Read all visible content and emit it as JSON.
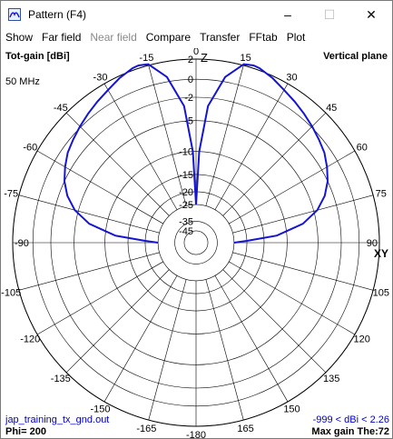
{
  "window": {
    "title": "Pattern   (F4)",
    "minimize_glyph": "–",
    "maximize_glyph": "☐",
    "close_glyph": "✕"
  },
  "menu": [
    {
      "label": "Show",
      "enabled": true
    },
    {
      "label": "Far field",
      "enabled": true
    },
    {
      "label": "Near field",
      "enabled": false
    },
    {
      "label": "Compare",
      "enabled": true
    },
    {
      "label": "Transfer",
      "enabled": true
    },
    {
      "label": "FFtab",
      "enabled": true
    },
    {
      "label": "Plot",
      "enabled": true
    }
  ],
  "plot": {
    "gain_label": "Tot-gain [dBi]",
    "plane_label": "Vertical plane",
    "frequency": "50 MHz",
    "z_axis_label": "Z",
    "xy_axis_label": "XY",
    "file_name": "jap_training_tx_gnd.out",
    "gain_range": "-999 < dBi < 2.26",
    "phi_label": "Phi= 200",
    "max_gain_label": "Max gain The:72",
    "trace_color": "#1414d2",
    "grid_color": "#000000"
  },
  "chart_data": {
    "type": "polar",
    "radial_ticks_dbi": [
      2,
      0,
      -2,
      -5,
      -10,
      -15,
      -20,
      -25,
      -35,
      -45
    ],
    "angle_ticks_deg": [
      0,
      15,
      30,
      45,
      60,
      75,
      90,
      105,
      120,
      135,
      150,
      165,
      180,
      -15,
      -30,
      -45,
      -60,
      -75,
      -90,
      -105,
      -120,
      -135,
      -150,
      -165
    ],
    "angle_tick_labels": [
      "0",
      "15",
      "30",
      "45",
      "60",
      "75",
      "90",
      "105",
      "120",
      "135",
      "150",
      "165",
      "-180",
      "-15",
      "-30",
      "-45",
      "-60",
      "-75",
      "-90",
      "-105",
      "-120",
      "-135",
      "-150",
      "-165"
    ],
    "series": [
      {
        "theta_deg": [
          0,
          2,
          5,
          10,
          15,
          20,
          25,
          30,
          35,
          40,
          45,
          50,
          55,
          60,
          65,
          70,
          72,
          75,
          80,
          85,
          88,
          90
        ],
        "gain_dbi": [
          -25,
          -20,
          -12,
          -7,
          -4.5,
          -3,
          -2,
          -1.3,
          -0.7,
          -0.3,
          0.1,
          0.5,
          0.9,
          1.3,
          1.8,
          2.2,
          2.26,
          2.1,
          0.5,
          -3,
          -10,
          -25
        ]
      }
    ]
  }
}
